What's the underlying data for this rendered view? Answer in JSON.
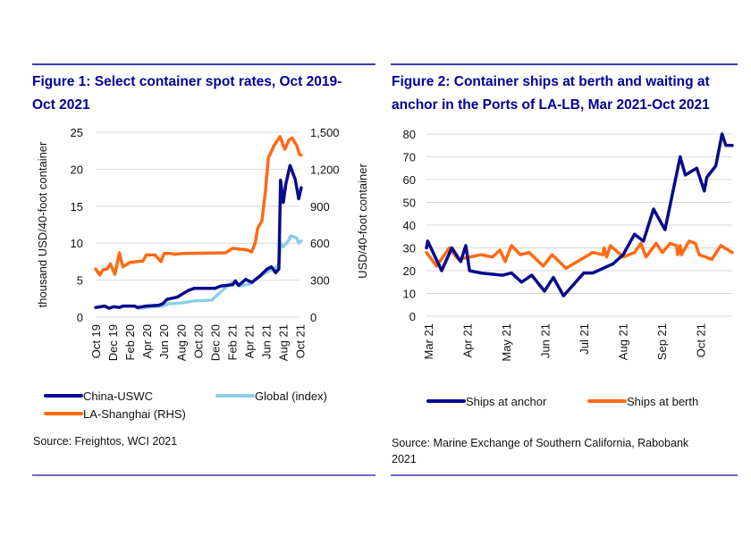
{
  "colors": {
    "title": "#000099",
    "rule": "#3b3bb5",
    "navy": "#0a0a8c",
    "light_blue": "#8ccfe6",
    "orange": "#ff6a13",
    "grid": "#d9d9d9"
  },
  "chart_data": [
    {
      "type": "line",
      "title": "Figure 1: Select container spot rates, Oct 2019-Oct 2021",
      "title_lines": [
        "Figure 1: Select container spot rates, Oct 2019-",
        "Oct 2021"
      ],
      "ylabel": "thousand  USD/40-foot container",
      "y2label": "USD/40-foot container",
      "ylim": [
        0,
        25
      ],
      "y2lim": [
        0,
        1500
      ],
      "yticks": [
        "0",
        "5",
        "10",
        "15",
        "20",
        "25"
      ],
      "y2ticks": [
        "0",
        "300",
        "600",
        "900",
        "1,200",
        "1,500"
      ],
      "xticks": [
        "Oct 19",
        "Dec 19",
        "Feb 20",
        "Apr 20",
        "Jun 20",
        "Aug 20",
        "Oct 20",
        "Dec 20",
        "Feb 21",
        "Apr 21",
        "Jun 21",
        "Aug 21",
        "Oct 21"
      ],
      "grid": true,
      "legend_position": "bottom",
      "source": "Source: Freightos, WCI 2021",
      "series": [
        {
          "name": "China-USWC",
          "axis": "left",
          "color": "#0a0a8c",
          "points": [
            [
              "2019-10-01",
              1.3
            ],
            [
              "2019-11-02",
              1.5
            ],
            [
              "2019-11-18",
              1.2
            ],
            [
              "2019-12-04",
              1.4
            ],
            [
              "2019-12-25",
              1.3
            ],
            [
              "2020-01-06",
              1.5
            ],
            [
              "2020-02-17",
              1.5
            ],
            [
              "2020-02-28",
              1.3
            ],
            [
              "2020-03-30",
              1.5
            ],
            [
              "2020-05-13",
              1.6
            ],
            [
              "2020-05-28",
              1.8
            ],
            [
              "2020-06-13",
              2.4
            ],
            [
              "2020-07-20",
              2.7
            ],
            [
              "2020-08-01",
              3.0
            ],
            [
              "2020-08-28",
              3.6
            ],
            [
              "2020-09-19",
              3.9
            ],
            [
              "2020-12-02",
              3.9
            ],
            [
              "2020-12-22",
              4.2
            ],
            [
              "2021-02-04",
              4.4
            ],
            [
              "2021-02-13",
              4.9
            ],
            [
              "2021-02-25",
              4.3
            ],
            [
              "2021-03-22",
              5.1
            ],
            [
              "2021-04-13",
              4.7
            ],
            [
              "2021-05-10",
              5.5
            ],
            [
              "2021-06-07",
              6.5
            ],
            [
              "2021-06-22",
              6.8
            ],
            [
              "2021-07-02",
              6.3
            ],
            [
              "2021-07-07",
              6.0
            ],
            [
              "2021-07-19",
              6.5
            ],
            [
              "2021-07-25",
              18.5
            ],
            [
              "2021-08-04",
              15.5
            ],
            [
              "2021-08-13",
              18.0
            ],
            [
              "2021-08-28",
              20.5
            ],
            [
              "2021-09-16",
              18.6
            ],
            [
              "2021-09-28",
              16.0
            ],
            [
              "2021-10-07",
              17.5
            ]
          ]
        },
        {
          "name": "Global (index)",
          "axis": "left",
          "color": "#8ccfe6",
          "points": [
            [
              "2020-02-28",
              1.2
            ],
            [
              "2020-04-20",
              1.4
            ],
            [
              "2020-05-28",
              1.5
            ],
            [
              "2020-06-18",
              1.8
            ],
            [
              "2020-08-01",
              1.9
            ],
            [
              "2020-09-19",
              2.2
            ],
            [
              "2020-11-20",
              2.3
            ],
            [
              "2020-12-10",
              3.0
            ],
            [
              "2021-01-03",
              3.8
            ],
            [
              "2021-02-01",
              4.7
            ],
            [
              "2021-02-14",
              4.6
            ],
            [
              "2021-03-01",
              4.2
            ],
            [
              "2021-04-07",
              4.5
            ],
            [
              "2021-05-04",
              5.3
            ],
            [
              "2021-06-01",
              6.0
            ],
            [
              "2021-07-01",
              6.5
            ],
            [
              "2021-07-19",
              7.0
            ],
            [
              "2021-07-25",
              10.0
            ],
            [
              "2021-08-04",
              9.5
            ],
            [
              "2021-08-25",
              10.5
            ],
            [
              "2021-08-30",
              11.0
            ],
            [
              "2021-09-21",
              10.7
            ],
            [
              "2021-09-28",
              10.0
            ],
            [
              "2021-10-07",
              10.3
            ]
          ]
        },
        {
          "name": "LA-Shanghai (RHS)",
          "axis": "right",
          "color": "#ff6a13",
          "points": [
            [
              "2019-10-01",
              390
            ],
            [
              "2019-10-16",
              342
            ],
            [
              "2019-10-27",
              384
            ],
            [
              "2019-11-11",
              390
            ],
            [
              "2019-11-23",
              432
            ],
            [
              "2019-12-09",
              348
            ],
            [
              "2019-12-25",
              522
            ],
            [
              "2020-01-06",
              408
            ],
            [
              "2020-02-01",
              444
            ],
            [
              "2020-03-19",
              456
            ],
            [
              "2020-03-30",
              504
            ],
            [
              "2020-05-01",
              504
            ],
            [
              "2020-05-22",
              450
            ],
            [
              "2020-06-02",
              516
            ],
            [
              "2020-06-23",
              516
            ],
            [
              "2020-07-15",
              510
            ],
            [
              "2020-08-05",
              516
            ],
            [
              "2021-01-09",
              522
            ],
            [
              "2021-02-03",
              558
            ],
            [
              "2021-03-28",
              546
            ],
            [
              "2021-04-12",
              528
            ],
            [
              "2021-04-25",
              600
            ],
            [
              "2021-05-04",
              720
            ],
            [
              "2021-05-19",
              780
            ],
            [
              "2021-06-01",
              1020
            ],
            [
              "2021-06-11",
              1290
            ],
            [
              "2021-07-02",
              1392
            ],
            [
              "2021-07-23",
              1464
            ],
            [
              "2021-08-09",
              1362
            ],
            [
              "2021-08-25",
              1440
            ],
            [
              "2021-09-05",
              1452
            ],
            [
              "2021-09-21",
              1392
            ],
            [
              "2021-10-01",
              1320
            ],
            [
              "2021-10-07",
              1314
            ]
          ]
        }
      ]
    },
    {
      "type": "line",
      "title": "Figure 2: Container ships at berth and waiting at anchor in the Ports of LA-LB, Mar 2021-Oct 2021",
      "title_lines": [
        "Figure 2: Container ships at berth and waiting at",
        "anchor in the Ports of LA-LB, Mar 2021-Oct 2021"
      ],
      "ylim": [
        0,
        80
      ],
      "yticks": [
        "0",
        "10",
        "20",
        "30",
        "40",
        "50",
        "60",
        "70",
        "80"
      ],
      "xticks": [
        "Mar 21",
        "Apr 21",
        "May 21",
        "Jun 21",
        "Jul 21",
        "Aug 21",
        "Sep 21",
        "Oct 21"
      ],
      "grid": true,
      "legend_position": "bottom",
      "source_lines": [
        "Source: Marine Exchange of Southern California, Rabobank",
        "2021"
      ],
      "series": [
        {
          "name": "Ships at anchor",
          "color": "#0a0a8c",
          "points": [
            [
              "2021-03-01",
              30
            ],
            [
              "2021-03-02",
              33
            ],
            [
              "2021-03-13",
              20
            ],
            [
              "2021-03-21",
              30
            ],
            [
              "2021-03-28",
              24
            ],
            [
              "2021-04-01",
              31
            ],
            [
              "2021-04-04",
              20
            ],
            [
              "2021-04-13",
              19
            ],
            [
              "2021-04-30",
              18
            ],
            [
              "2021-05-07",
              19
            ],
            [
              "2021-05-15",
              15
            ],
            [
              "2021-05-23",
              18
            ],
            [
              "2021-06-02",
              11
            ],
            [
              "2021-06-09",
              17
            ],
            [
              "2021-06-17",
              9
            ],
            [
              "2021-07-03",
              19
            ],
            [
              "2021-07-10",
              19
            ],
            [
              "2021-07-26",
              23
            ],
            [
              "2021-08-03",
              27
            ],
            [
              "2021-08-12",
              36
            ],
            [
              "2021-08-19",
              33
            ],
            [
              "2021-08-27",
              47
            ],
            [
              "2021-09-05",
              38
            ],
            [
              "2021-09-17",
              70
            ],
            [
              "2021-09-21",
              62
            ],
            [
              "2021-09-30",
              65
            ],
            [
              "2021-10-06",
              55
            ],
            [
              "2021-10-08",
              61
            ],
            [
              "2021-10-15",
              66
            ],
            [
              "2021-10-20",
              80
            ],
            [
              "2021-10-23",
              75
            ],
            [
              "2021-10-28",
              75
            ]
          ]
        },
        {
          "name": "Ships at berth",
          "color": "#ff6a13",
          "points": [
            [
              "2021-03-01",
              28
            ],
            [
              "2021-03-09",
              22
            ],
            [
              "2021-03-19",
              30
            ],
            [
              "2021-03-26",
              25
            ],
            [
              "2021-04-13",
              27
            ],
            [
              "2021-04-22",
              26
            ],
            [
              "2021-04-28",
              29
            ],
            [
              "2021-05-02",
              24
            ],
            [
              "2021-05-07",
              31
            ],
            [
              "2021-05-14",
              27
            ],
            [
              "2021-05-21",
              28
            ],
            [
              "2021-06-01",
              22
            ],
            [
              "2021-06-08",
              27
            ],
            [
              "2021-06-19",
              21
            ],
            [
              "2021-06-28",
              24
            ],
            [
              "2021-07-10",
              28
            ],
            [
              "2021-07-18",
              27
            ],
            [
              "2021-07-19",
              30
            ],
            [
              "2021-07-21",
              26
            ],
            [
              "2021-07-24",
              31
            ],
            [
              "2021-08-03",
              26
            ],
            [
              "2021-08-12",
              28
            ],
            [
              "2021-08-17",
              32
            ],
            [
              "2021-08-21",
              26
            ],
            [
              "2021-08-29",
              32
            ],
            [
              "2021-09-03",
              28
            ],
            [
              "2021-09-09",
              32
            ],
            [
              "2021-09-14",
              31
            ],
            [
              "2021-09-15",
              27
            ],
            [
              "2021-09-17",
              31
            ],
            [
              "2021-09-18",
              27
            ],
            [
              "2021-09-24",
              33
            ],
            [
              "2021-09-29",
              32
            ],
            [
              "2021-10-02",
              27
            ],
            [
              "2021-10-12",
              25
            ],
            [
              "2021-10-19",
              31
            ],
            [
              "2021-10-28",
              28
            ]
          ]
        }
      ]
    }
  ]
}
